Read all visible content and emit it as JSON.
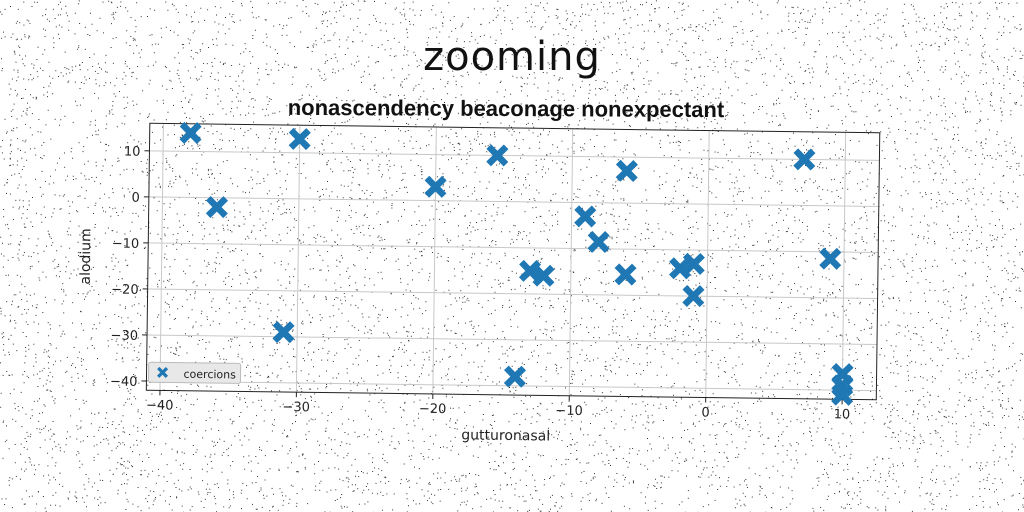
{
  "title": "zooming",
  "subtitle": "nonascendency beaconage nonexpectant",
  "chart_data": {
    "type": "scatter",
    "xlabel": "gutturonasal",
    "ylabel": "alodium",
    "xlim": [
      -41,
      12.5
    ],
    "ylim": [
      -42,
      16
    ],
    "xticks": [
      -40,
      -30,
      -20,
      -10,
      0,
      10
    ],
    "yticks": [
      10,
      0,
      -10,
      -20,
      -30,
      -40
    ],
    "xtick_labels": [
      "−40",
      "−30",
      "−20",
      "−10",
      "0",
      "10"
    ],
    "ytick_labels": [
      "10",
      "0",
      "−10",
      "−20",
      "−30",
      "−40"
    ],
    "grid": true,
    "legend_position": "lower-left",
    "marker": "X",
    "series": [
      {
        "name": "coercions",
        "color": "#1f77b4",
        "points": [
          [
            -38,
            14
          ],
          [
            -36,
            -2
          ],
          [
            -30,
            13
          ],
          [
            -31,
            -29
          ],
          [
            -20,
            3
          ],
          [
            -15.5,
            10
          ],
          [
            -14,
            -38
          ],
          [
            -13,
            -15
          ],
          [
            -12,
            -16
          ],
          [
            -9,
            -3
          ],
          [
            -8,
            -8.5
          ],
          [
            -6,
            7
          ],
          [
            -6,
            -15.5
          ],
          [
            -2,
            -14
          ],
          [
            -1,
            -13
          ],
          [
            -1,
            -20
          ],
          [
            7,
            10
          ],
          [
            9,
            -11.5
          ],
          [
            10,
            -36.5
          ],
          [
            10,
            -39
          ],
          [
            10,
            -41
          ]
        ]
      }
    ]
  }
}
